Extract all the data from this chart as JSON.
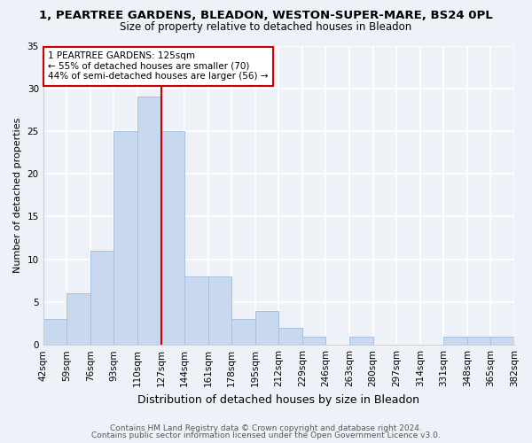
{
  "title": "1, PEARTREE GARDENS, BLEADON, WESTON-SUPER-MARE, BS24 0PL",
  "subtitle": "Size of property relative to detached houses in Bleadon",
  "xlabel": "Distribution of detached houses by size in Bleadon",
  "ylabel": "Number of detached properties",
  "bar_color": "#c8d9ef",
  "bar_edge_color": "#a8c0df",
  "bin_edges": [
    42,
    59,
    76,
    93,
    110,
    127,
    144,
    161,
    178,
    195,
    212,
    229,
    246,
    263,
    280,
    297,
    314,
    331,
    348,
    365,
    382
  ],
  "bar_heights": [
    3,
    6,
    11,
    25,
    29,
    25,
    8,
    8,
    3,
    4,
    2,
    1,
    0,
    1,
    0,
    0,
    0,
    1,
    1,
    1
  ],
  "vline_x": 127,
  "vline_color": "#cc0000",
  "ylim": [
    0,
    35
  ],
  "annotation_text": "1 PEARTREE GARDENS: 125sqm\n← 55% of detached houses are smaller (70)\n44% of semi-detached houses are larger (56) →",
  "annotation_box_color": "#ffffff",
  "annotation_box_edge": "#cc0000",
  "footer_line1": "Contains HM Land Registry data © Crown copyright and database right 2024.",
  "footer_line2": "Contains public sector information licensed under the Open Government Licence v3.0.",
  "bg_color": "#eef2f8",
  "plot_bg_color": "#eef2f8",
  "tick_labels": [
    "42sqm",
    "59sqm",
    "76sqm",
    "93sqm",
    "110sqm",
    "127sqm",
    "144sqm",
    "161sqm",
    "178sqm",
    "195sqm",
    "212sqm",
    "229sqm",
    "246sqm",
    "263sqm",
    "280sqm",
    "297sqm",
    "314sqm",
    "331sqm",
    "348sqm",
    "365sqm",
    "382sqm"
  ],
  "yticks": [
    0,
    5,
    10,
    15,
    20,
    25,
    30,
    35
  ],
  "title_fontsize": 9.5,
  "subtitle_fontsize": 8.5,
  "ylabel_fontsize": 8,
  "xlabel_fontsize": 9,
  "tick_fontsize": 7.5,
  "annotation_fontsize": 7.5,
  "footer_fontsize": 6.5
}
